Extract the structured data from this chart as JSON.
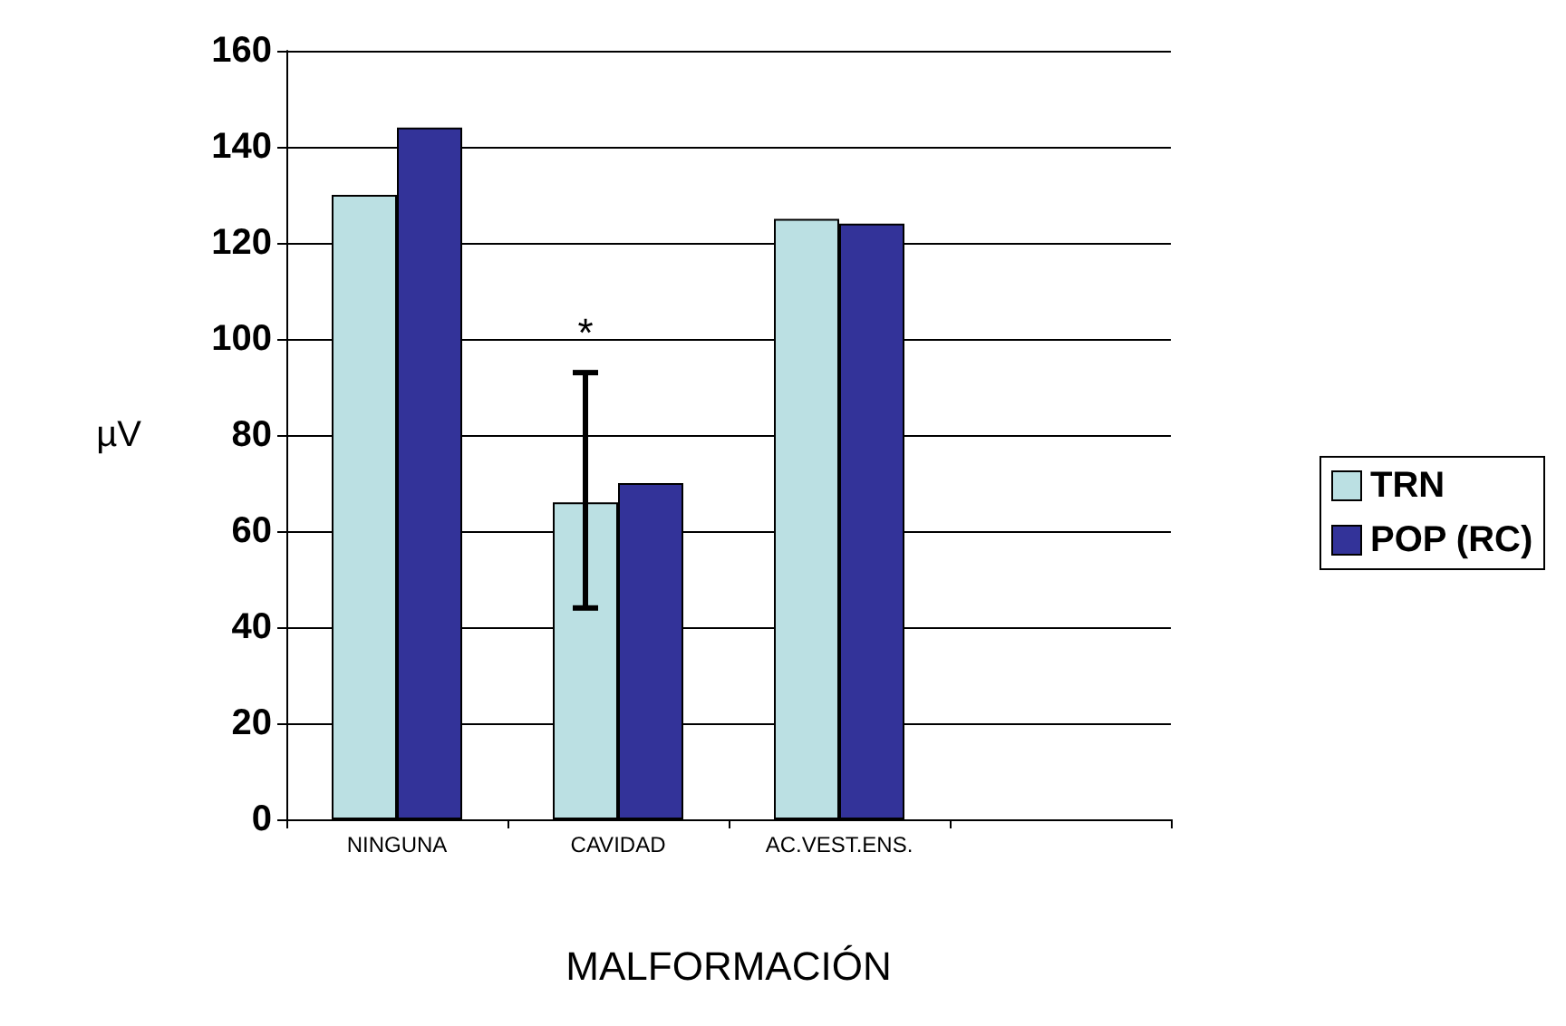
{
  "chart_data": {
    "type": "bar",
    "xlabel": "MALFORMACIÓN",
    "ylabel": "µV",
    "categories": [
      "NINGUNA",
      "CAVIDAD",
      "AC.VEST.ENS.",
      null
    ],
    "series": [
      {
        "name": "TRN",
        "color": "#bbe0e3",
        "values": [
          130,
          66,
          125,
          null
        ],
        "errors": [
          null,
          [
            44,
            93
          ],
          null,
          null
        ]
      },
      {
        "name": "POP (RC)",
        "color": "#333399",
        "values": [
          144,
          70,
          124,
          null
        ]
      }
    ],
    "annotations": [
      "*"
    ],
    "ylim": [
      0,
      160
    ],
    "yticks": [
      0,
      20,
      40,
      60,
      80,
      100,
      120,
      140,
      160
    ],
    "grid": "y",
    "legend": "right"
  }
}
